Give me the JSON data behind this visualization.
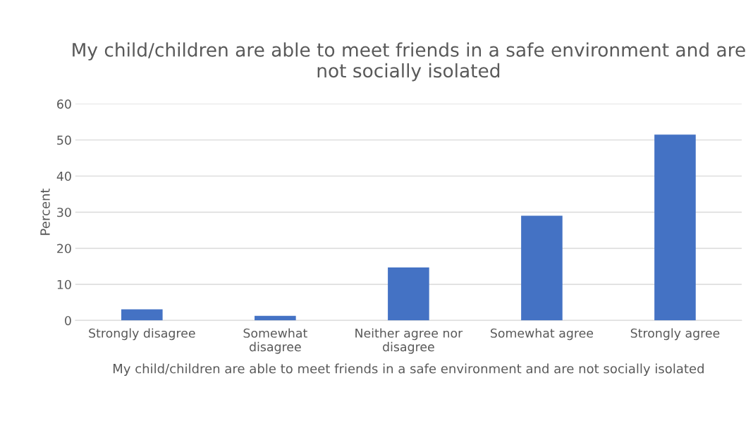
{
  "chart_data": {
    "type": "bar",
    "title": "My child/children are able to meet friends in a safe environment and are not socially isolated",
    "xlabel": "My child/children are able to meet friends in a safe environment and are not socially isolated",
    "ylabel": "Percent",
    "categories": [
      "Strongly disagree",
      "Somewhat disagree",
      "Neither agree nor disagree",
      "Somewhat agree",
      "Strongly agree"
    ],
    "values": [
      3.1,
      1.3,
      14.7,
      29.0,
      51.5
    ],
    "color": "#4472c4",
    "ylim": [
      0,
      60
    ],
    "yticks": [
      0,
      10,
      20,
      30,
      40,
      50,
      60
    ],
    "grid": "y"
  }
}
